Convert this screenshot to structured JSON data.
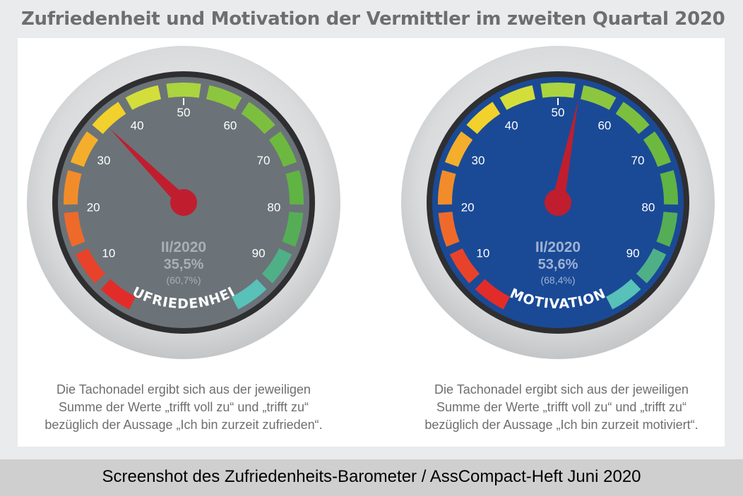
{
  "title": "Zufriedenheit und Motivation der Vermittler im zweiten Quartal 2020",
  "chart_data": [
    {
      "type": "gauge",
      "label": "ZUFRIEDENHEIT",
      "period": "II/2020",
      "value": 35.5,
      "value_text": "35,5%",
      "previous_text": "(60,7%)",
      "scale": [
        0,
        100
      ],
      "ticks": [
        "10",
        "20",
        "30",
        "40",
        "50",
        "60",
        "70",
        "80",
        "90"
      ],
      "face_color": "#6b7378",
      "text_color": "#a9b0b5",
      "note": [
        "Die Tachonadel ergibt sich aus der jeweiligen",
        "Summe der Werte „trifft voll zu“ und „trifft zu“",
        "bezüglich der Aussage „Ich bin zurzeit zufrieden“."
      ]
    },
    {
      "type": "gauge",
      "label": "MOTIVATION",
      "period": "II/2020",
      "value": 53.6,
      "value_text": "53,6%",
      "previous_text": "(68,4%)",
      "scale": [
        0,
        100
      ],
      "ticks": [
        "10",
        "20",
        "30",
        "40",
        "50",
        "60",
        "70",
        "80",
        "90"
      ],
      "face_color": "#1a4a96",
      "text_color": "#9fb2d2",
      "note": [
        "Die Tachonadel ergibt sich aus der jeweiligen",
        "Summe der Werte „trifft voll zu“ und „trifft zu“",
        "bezüglich der Aussage „Ich bin zurzeit motiviert“."
      ]
    }
  ],
  "segment_colors": [
    "#e22c2a",
    "#e8432a",
    "#ef6a2a",
    "#f28c2a",
    "#f5ae2b",
    "#f2d12c",
    "#d4de3a",
    "#aad440",
    "#8cc63f",
    "#7cbf3f",
    "#6db940",
    "#5fb443",
    "#55ae55",
    "#4fb088",
    "#58c1b8"
  ],
  "needle_color": "#c01e2e",
  "footer": "Screenshot des Zufriedenheits-Barometer / AssCompact-Heft Juni 2020"
}
